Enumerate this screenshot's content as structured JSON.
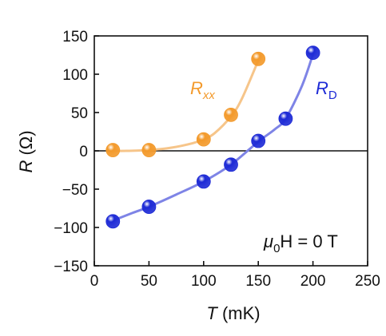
{
  "chart_data": {
    "type": "line",
    "xlabel": {
      "var": "T",
      "unit": " (mK)"
    },
    "ylabel": {
      "var": "R",
      "unit": " (Ω)"
    },
    "xlim": [
      0,
      250
    ],
    "ylim": [
      -150,
      150
    ],
    "xticks": [
      "0",
      "50",
      "100",
      "150",
      "200",
      "250"
    ],
    "yticks": [
      "150",
      "100",
      "50",
      "0",
      "−50",
      "−100",
      "−150"
    ],
    "grid": false,
    "zero_line": true,
    "annotation": {
      "mu": "μ",
      "sub": "0",
      "rest": "H = 0 T"
    },
    "series": [
      {
        "name_main": "R",
        "name_sub": "xx",
        "color": "#F39A2C",
        "line_color": "#F6C58A",
        "x": [
          17,
          50,
          100,
          125,
          150
        ],
        "y": [
          1,
          1,
          15,
          47,
          120
        ],
        "curve_x": [
          17,
          30,
          50,
          70,
          90,
          100,
          110,
          125,
          135,
          150
        ],
        "curve_y": [
          0,
          0,
          1,
          4,
          10,
          15,
          23,
          45,
          68,
          118
        ]
      },
      {
        "name_main": "R",
        "name_sub": "D",
        "color": "#1E2BD6",
        "line_color": "#7E84E6",
        "x": [
          17,
          50,
          100,
          125,
          150,
          175,
          200
        ],
        "y": [
          -92,
          -73,
          -40,
          -18,
          13,
          42,
          128
        ],
        "curve_x": [
          17,
          35,
          50,
          75,
          100,
          125,
          150,
          165,
          175,
          190,
          200
        ],
        "curve_y": [
          -91,
          -81,
          -73,
          -57,
          -40,
          -18,
          12,
          28,
          42,
          85,
          126
        ]
      }
    ]
  }
}
